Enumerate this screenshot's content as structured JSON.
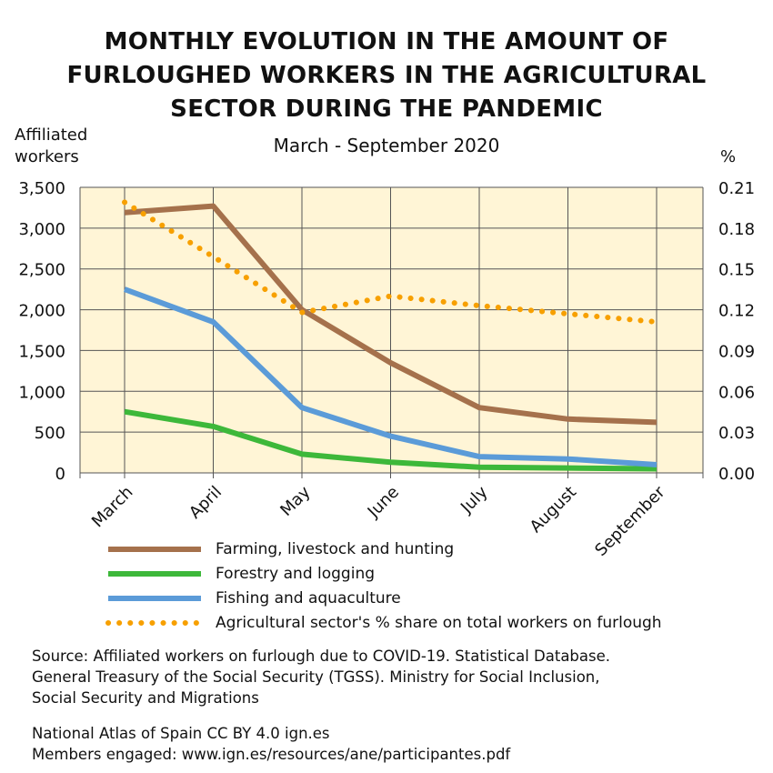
{
  "chart_data": {
    "type": "line",
    "title": "MONTHLY EVOLUTION IN THE AMOUNT OF FURLOUGHED WORKERS IN THE AGRICULTURAL SECTOR DURING THE PANDEMIC",
    "title_lines": [
      "MONTHLY EVOLUTION IN THE AMOUNT OF",
      "FURLOUGHED WORKERS IN THE AGRICULTURAL",
      "SECTOR DURING THE PANDEMIC"
    ],
    "subtitle": "March - September 2020",
    "ylabel_lines": [
      "Affiliated",
      "workers"
    ],
    "y2label": "%",
    "categories": [
      "March",
      "April",
      "May",
      "June",
      "July",
      "August",
      "September"
    ],
    "ylim": [
      0,
      3500
    ],
    "yticks": [
      "0",
      "500",
      "1,000",
      "1,500",
      "2,000",
      "2,500",
      "3,000",
      "3,500"
    ],
    "y2lim": [
      0,
      0.21
    ],
    "y2ticks": [
      "0.00",
      "0.03",
      "0.06",
      "0.09",
      "0.12",
      "0.15",
      "0.18",
      "0.21"
    ],
    "grid": true,
    "legend_placement": "bottom",
    "background_color": "#fff5d6",
    "series": [
      {
        "name": "Farming, livestock and hunting",
        "axis": "left",
        "style": "solid",
        "color": "#a5714c",
        "values": [
          3190,
          3270,
          2000,
          1350,
          800,
          660,
          620
        ]
      },
      {
        "name": "Forestry and logging",
        "axis": "left",
        "style": "solid",
        "color": "#3db83a",
        "values": [
          750,
          570,
          230,
          130,
          70,
          60,
          50
        ]
      },
      {
        "name": "Fishing and aquaculture",
        "axis": "left",
        "style": "solid",
        "color": "#5b9bd8",
        "values": [
          2250,
          1850,
          800,
          450,
          200,
          170,
          100
        ]
      },
      {
        "name": "Agricultural sector's % share on total workers on furlough",
        "axis": "right",
        "style": "dotted",
        "color": "#f7a000",
        "values": [
          0.199,
          0.159,
          0.118,
          0.13,
          0.123,
          0.117,
          0.111
        ]
      }
    ]
  },
  "source_lines": [
    "Source: Affiliated workers on furlough due to COVID-19. Statistical Database.",
    "General Treasury of the Social Security (TGSS). Ministry for Social Inclusion,",
    "Social Security and Migrations"
  ],
  "credit_lines": [
    "National Atlas of Spain CC BY 4.0 ign.es",
    "Members engaged: www.ign.es/resources/ane/participantes.pdf"
  ]
}
